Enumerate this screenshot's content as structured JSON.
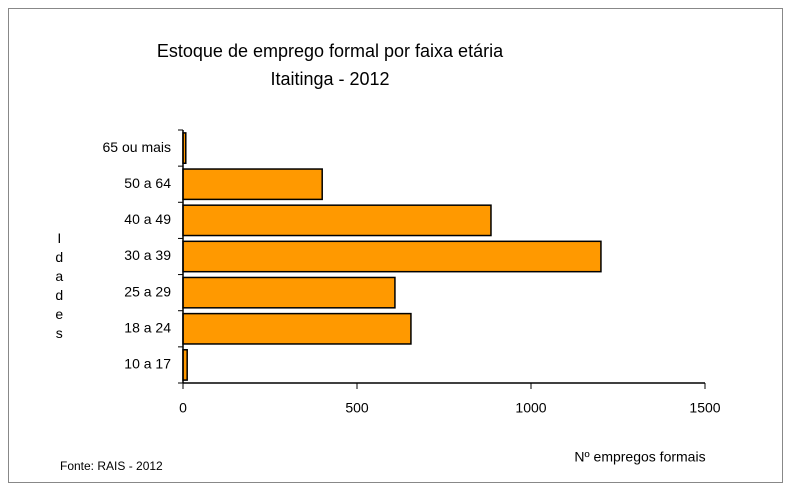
{
  "chart_data": {
    "type": "hbar",
    "title": "Estoque de emprego formal por faixa etária",
    "subtitle": "Itaitinga - 2012",
    "y_label": "Idades",
    "x_label": "Nº empregos formais",
    "source": "Fonte: RAIS - 2012",
    "categories": [
      "65 ou mais",
      "50 a 64",
      "40 a 49",
      "30 a 39",
      "25 a 29",
      "18 a 24",
      "10 a 17"
    ],
    "values": [
      8,
      400,
      885,
      1201,
      609,
      655,
      12
    ],
    "color": "#ff9900",
    "xlim": [
      0,
      1500
    ],
    "xticks": [
      0,
      500,
      1000,
      1500
    ]
  }
}
